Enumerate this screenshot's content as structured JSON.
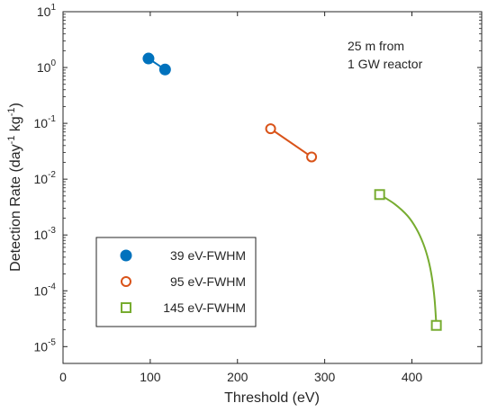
{
  "chart_data": {
    "type": "line",
    "xlabel": "Threshold (eV)",
    "ylabel_main": "Detection Rate (day",
    "ylabel_sup1": "-1",
    "ylabel_mid": " kg",
    "ylabel_sup2": "-1",
    "ylabel_end": ")",
    "xlim": [
      0,
      480
    ],
    "ylim": [
      5e-06,
      10
    ],
    "yscale": "log",
    "x_ticks": [
      0,
      100,
      200,
      300,
      400
    ],
    "y_tick_exponents": [
      -5,
      -4,
      -3,
      -2,
      -1,
      0,
      1
    ],
    "y_tick_base": "10",
    "grid": false,
    "annotation": [
      "25 m from",
      "1 GW reactor"
    ],
    "legend_position": "lower-left",
    "series": [
      {
        "name": "39 eV-FWHM",
        "color": "#0072BD",
        "marker": "filled-circle",
        "points": [
          [
            98,
            1.45
          ],
          [
            117,
            0.92
          ]
        ],
        "curve": [
          [
            98,
            1.45
          ],
          [
            117,
            0.92
          ]
        ]
      },
      {
        "name": "95 eV-FWHM",
        "color": "#D95319",
        "marker": "open-circle",
        "points": [
          [
            238,
            0.08
          ],
          [
            285,
            0.025
          ]
        ],
        "curve": [
          [
            238,
            0.08
          ],
          [
            285,
            0.025
          ]
        ]
      },
      {
        "name": "145 eV-FWHM",
        "color": "#77AC30",
        "marker": "open-square",
        "points": [
          [
            363,
            0.0053
          ],
          [
            428,
            2.4e-05
          ]
        ],
        "curve": [
          [
            363,
            0.0053
          ],
          [
            380,
            0.0036
          ],
          [
            395,
            0.0022
          ],
          [
            405,
            0.0013
          ],
          [
            413,
            0.0007
          ],
          [
            419,
            0.00035
          ],
          [
            423,
            0.00017
          ],
          [
            426,
            7e-05
          ],
          [
            428,
            2.4e-05
          ]
        ]
      }
    ]
  }
}
